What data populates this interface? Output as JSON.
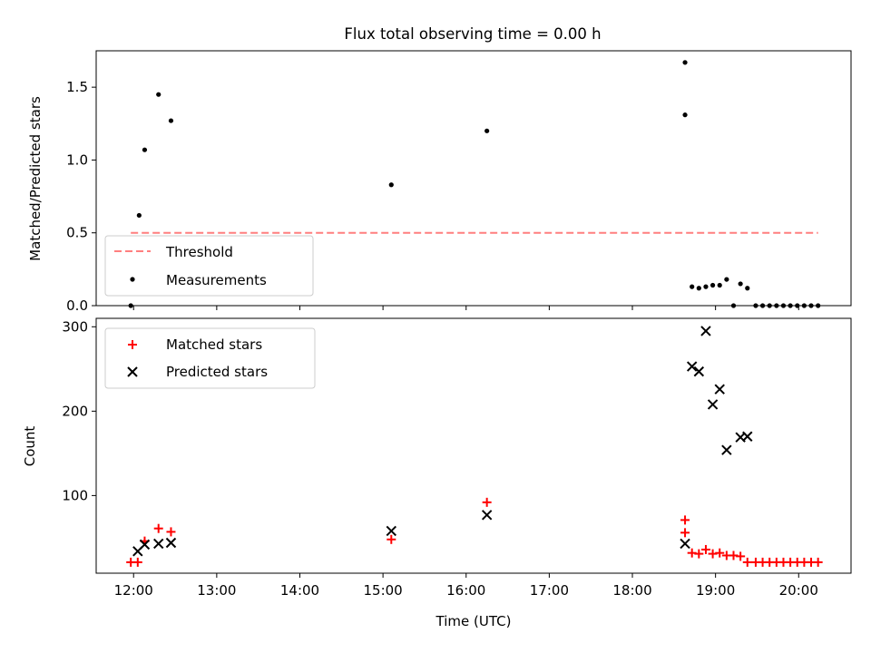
{
  "figure": {
    "title": "Flux total observing time = 0.00 h"
  },
  "chart_data": [
    {
      "type": "scatter",
      "panel": "top",
      "title": "Flux total observing time = 0.00 h",
      "xlabel": "",
      "ylabel": "Matched/Predicted stars",
      "xlim_hours": [
        11.55,
        20.63
      ],
      "ylim": [
        0,
        1.75
      ],
      "yticks": [
        0.0,
        0.5,
        1.0,
        1.5
      ],
      "ytick_labels": [
        "0.0",
        "0.5",
        "1.0",
        "1.5"
      ],
      "legend_position": "lower-left",
      "threshold": {
        "name": "Threshold",
        "value": 0.5,
        "x_start": "11:58",
        "x_end": "20:14",
        "color": "#ff7f7f",
        "style": "dashed"
      },
      "series": [
        {
          "name": "Measurements",
          "color": "#000000",
          "marker": "dot",
          "x": [
            "11:58",
            "12:04",
            "12:08",
            "12:18",
            "12:27",
            "15:06",
            "16:15",
            "18:38",
            "18:38",
            "18:43",
            "18:48",
            "18:53",
            "18:58",
            "19:03",
            "19:08",
            "19:13",
            "19:18",
            "19:23",
            "19:29",
            "19:34",
            "19:39",
            "19:44",
            "19:49",
            "19:54",
            "19:59",
            "20:04",
            "20:09",
            "20:14"
          ],
          "values": [
            0.0,
            0.62,
            1.07,
            1.45,
            1.27,
            0.83,
            1.2,
            1.67,
            1.31,
            0.13,
            0.12,
            0.13,
            0.14,
            0.14,
            0.18,
            0.0,
            0.15,
            0.12,
            0.0,
            0.0,
            0.0,
            0.0,
            0.0,
            0.0,
            0.0,
            0.0,
            0.0,
            0.0
          ]
        }
      ]
    },
    {
      "type": "scatter",
      "panel": "bottom",
      "title": "",
      "xlabel": "Time (UTC)",
      "ylabel": "Count",
      "xlim_hours": [
        11.55,
        20.63
      ],
      "ylim": [
        8,
        310
      ],
      "yticks": [
        100,
        200,
        300
      ],
      "ytick_labels": [
        "100",
        "200",
        "300"
      ],
      "xticks_hours": [
        12,
        13,
        14,
        15,
        16,
        17,
        18,
        19,
        20
      ],
      "xtick_labels": [
        "12:00",
        "13:00",
        "14:00",
        "15:00",
        "16:00",
        "17:00",
        "18:00",
        "19:00",
        "20:00"
      ],
      "legend_position": "upper-left",
      "series": [
        {
          "name": "Matched stars",
          "color": "#ff0000",
          "marker": "plus",
          "x": [
            "11:58",
            "12:03",
            "12:08",
            "12:18",
            "12:27",
            "15:06",
            "16:15",
            "18:38",
            "18:38",
            "18:43",
            "18:48",
            "18:53",
            "18:58",
            "19:03",
            "19:08",
            "19:13",
            "19:18",
            "19:23",
            "19:29",
            "19:34",
            "19:39",
            "19:44",
            "19:49",
            "19:54",
            "19:59",
            "20:04",
            "20:09",
            "20:14"
          ],
          "values": [
            21,
            21,
            46,
            61,
            57,
            48,
            92,
            71,
            56,
            32,
            31,
            36,
            31,
            32,
            29,
            29,
            28,
            21,
            21,
            21,
            21,
            21,
            21,
            21,
            21,
            21,
            21,
            21
          ]
        },
        {
          "name": "Predicted stars",
          "color": "#000000",
          "marker": "x",
          "x": [
            "12:03",
            "12:08",
            "12:18",
            "12:27",
            "15:06",
            "16:15",
            "18:38",
            "18:43",
            "18:48",
            "18:53",
            "18:58",
            "19:03",
            "19:08",
            "19:18",
            "19:23"
          ],
          "values": [
            34,
            42,
            43,
            44,
            58,
            77,
            43,
            253,
            247,
            295,
            208,
            226,
            154,
            169,
            170
          ]
        }
      ]
    }
  ]
}
